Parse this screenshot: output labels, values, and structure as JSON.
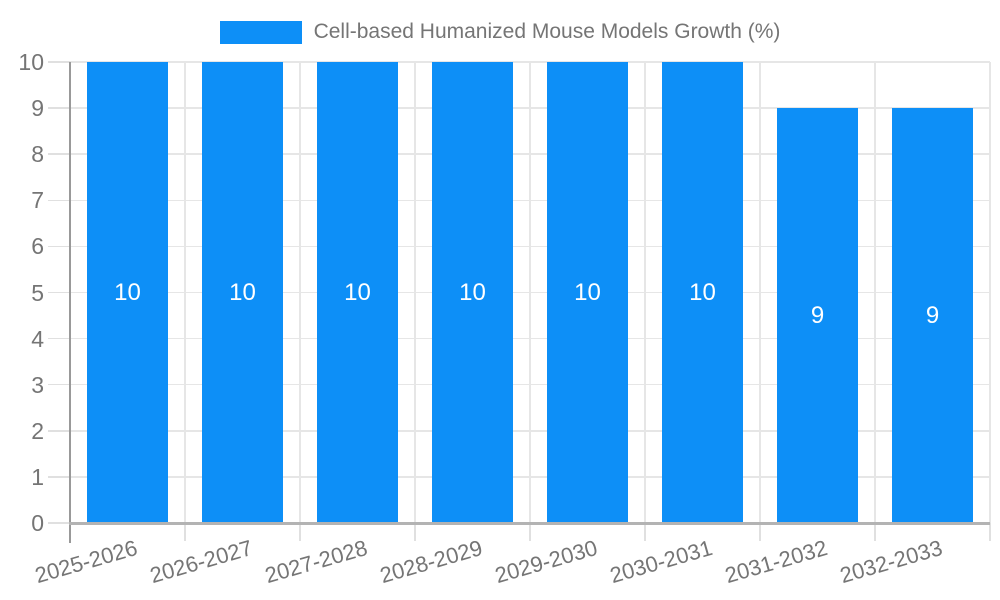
{
  "chart_data": {
    "type": "bar",
    "title": "Cell-based Humanized Mouse Models Growth (%)",
    "categories": [
      "2025-2026",
      "2026-2027",
      "2027-2028",
      "2028-2029",
      "2029-2030",
      "2030-2031",
      "2031-2032",
      "2032-2033"
    ],
    "values": [
      10,
      10,
      10,
      10,
      10,
      10,
      9,
      9
    ],
    "bar_labels": [
      "10",
      "10",
      "10",
      "10",
      "10",
      "10",
      "9",
      "9"
    ],
    "xlabel": "",
    "ylabel": "",
    "ylim": [
      0,
      10
    ],
    "yticks": [
      0,
      1,
      2,
      3,
      4,
      5,
      6,
      7,
      8,
      9,
      10
    ],
    "grid": true,
    "legend_position": "top",
    "bar_label_position": "inside-middle",
    "colors": {
      "bar": "#0d8ff7",
      "bar_label": "#ffffff",
      "axis_text": "#757575",
      "grid_line": "#e6e6e6",
      "tick_line": "#e0e0e0",
      "x_axis_line": "#b3b3b3",
      "y_axis_line": "#999999",
      "background": "#ffffff"
    }
  }
}
